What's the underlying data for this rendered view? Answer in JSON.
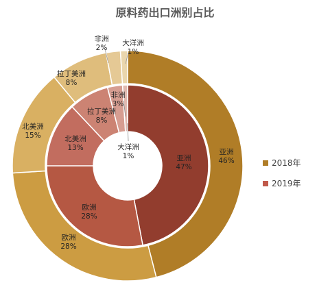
{
  "chart_data": {
    "type": "pie",
    "title": "原料药出口洲别占比",
    "categories": [
      "亚洲",
      "欧洲",
      "北美洲",
      "拉丁美洲",
      "非洲",
      "大洋洲"
    ],
    "series": [
      {
        "name": "2018年",
        "values": [
          46,
          28,
          15,
          8,
          2,
          1
        ],
        "labels": [
          "46%",
          "28%",
          "15%",
          "8%",
          "2%",
          "1%"
        ],
        "colors": [
          "#b07d27",
          "#cc9c42",
          "#d9b062",
          "#dfbd7c",
          "#e5c995",
          "#ead6ad"
        ]
      },
      {
        "name": "2019年",
        "values": [
          47,
          28,
          13,
          8,
          3,
          1
        ],
        "labels": [
          "47%",
          "28%",
          "13%",
          "8%",
          "3%",
          "1%"
        ],
        "colors": [
          "#923d2e",
          "#b55843",
          "#c26d5f",
          "#cc8373",
          "#d69d91",
          "#e0b9b0"
        ]
      }
    ],
    "legend": {
      "position": "right",
      "colors": [
        "#b07d27",
        "#c0594a"
      ]
    }
  }
}
